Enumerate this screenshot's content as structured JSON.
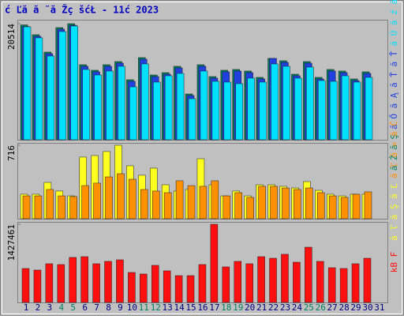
{
  "chart_data": {
    "type": "bar",
    "title": "ć Ľă  ă ¨ă Žç šćŁ  - 11ć   2023",
    "categories": [
      "1",
      "2",
      "3",
      "4",
      "5",
      "6",
      "7",
      "8",
      "9",
      "10",
      "11",
      "12",
      "13",
      "14",
      "15",
      "16",
      "17",
      "18",
      "19",
      "20",
      "21",
      "22",
      "23",
      "24",
      "25",
      "26",
      "27",
      "28",
      "29",
      "30",
      "31"
    ],
    "category_colors": [
      "#000080",
      "#000080",
      "#000080",
      "#00805f",
      "#00805f",
      "#000080",
      "#000080",
      "#000080",
      "#000080",
      "#000080",
      "#00805f",
      "#00805f",
      "#000080",
      "#000080",
      "#000080",
      "#000080",
      "#000080",
      "#00805f",
      "#00805f",
      "#000080",
      "#000080",
      "#000080",
      "#000080",
      "#000080",
      "#00805f",
      "#00805f",
      "#000080",
      "#000080",
      "#000080",
      "#000080",
      "#000080"
    ],
    "panels": [
      {
        "ylim": [
          0,
          20514
        ],
        "yticks": [
          20514
        ],
        "series": [
          {
            "name": "ă Ż ă Ş",
            "color": "#00805f",
            "values": [
              20300,
              18567,
              15496,
              19823,
              20514,
              13262,
              12285,
              13262,
              13820,
              10610,
              14518,
              11447,
              11866,
              12983,
              8097,
              13262,
              11168,
              12285,
              12424,
              12145,
              11028,
              14379,
              13960,
              11587,
              13820,
              11028,
              12424,
              12145,
              10749,
              12006,
              null
            ]
          },
          {
            "name": "ă Ő ă Ą ă Ť ă Ť",
            "color": "#2040e0",
            "values": [
              20020,
              18287,
              15216,
              19543,
              20234,
              12982,
              12005,
              12982,
              13540,
              10330,
              14238,
              11167,
              11586,
              12703,
              7817,
              12982,
              10888,
              12005,
              12144,
              11865,
              10748,
              14379,
              13680,
              11307,
              13540,
              10748,
              12144,
              11865,
              10469,
              11726,
              null
            ]
          },
          {
            "name": "ă Ú ă ź ă ¸",
            "color": "#00e0ff",
            "values": [
              19963,
              18008,
              14798,
              19125,
              20102,
              12424,
              11447,
              12145,
              12983,
              9353,
              13402,
              10191,
              11308,
              11726,
              7259,
              12145,
              10330,
              10191,
              9912,
              10889,
              10191,
              13402,
              12983,
              10889,
              12843,
              10470,
              10330,
              11308,
              10191,
              11028,
              null
            ]
          }
        ]
      },
      {
        "ylim": [
          0,
          716
        ],
        "yticks": [
          716
        ],
        "series": [
          {
            "name": "ă ľ ă Ş ă Ľ",
            "color": "#ffff20",
            "values": [
              239,
              239,
              354,
              270,
              223,
              601,
              616,
              655,
              716,
              516,
              424,
              493,
              331,
              270,
              285,
              585,
              331,
              223,
              270,
              223,
              331,
              331,
              316,
              300,
              362,
              277,
              239,
              223,
              239,
              239,
              null
            ]
          },
          {
            "name": "ă ľ ă ¤ ă Č",
            "color": "#ff9000",
            "values": [
              223,
              223,
              285,
              223,
              216,
              323,
              347,
              408,
              439,
              385,
              285,
              270,
              254,
              370,
              323,
              316,
              370,
              223,
              254,
              208,
              316,
              316,
              300,
              285,
              300,
              254,
              223,
              208,
              239,
              262,
              null
            ]
          }
        ]
      },
      {
        "ylim": [
          0,
          1427461
        ],
        "yticks": [
          1427461
        ],
        "series": [
          {
            "name": "kB F",
            "color": "#ff1010",
            "values": [
              620000,
              591000,
              706500,
              692000,
              822000,
              836000,
              706500,
              750000,
              778600,
              548000,
              519000,
              677700,
              576800,
              490000,
              490000,
              692000,
              1427461,
              649000,
              750000,
              706500,
              836000,
              807000,
              879600,
              735000,
              1009000,
              750000,
              634000,
              620000,
              706500,
              807000,
              null
            ]
          }
        ]
      }
    ]
  }
}
